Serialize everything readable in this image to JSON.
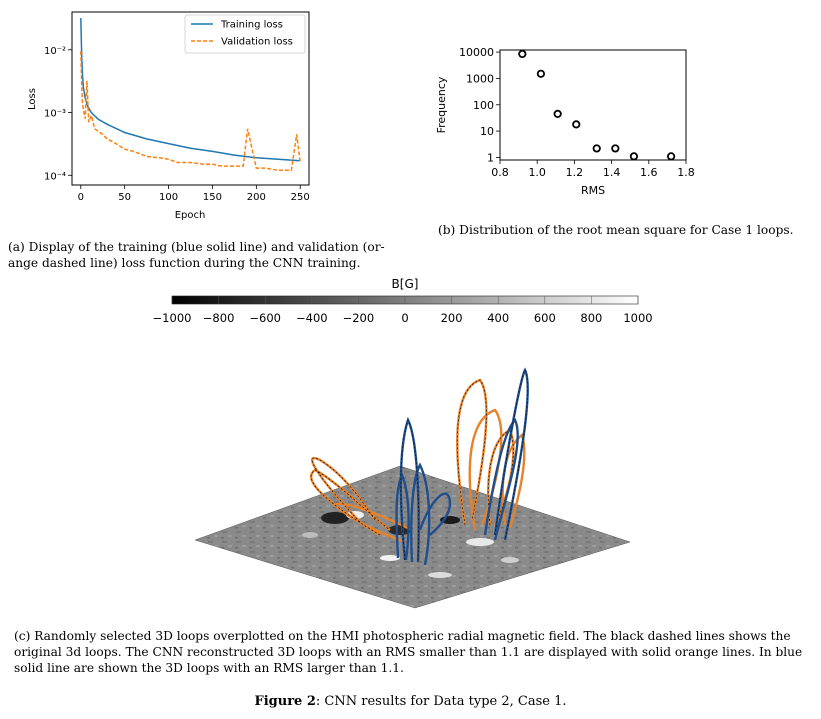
{
  "chart_data": [
    {
      "type": "line",
      "panel": "a",
      "xlabel": "Epoch",
      "ylabel": "Loss",
      "xlim": [
        -10,
        260
      ],
      "ylim": [
        7e-05,
        0.04
      ],
      "log_y": true,
      "x_ticks": [
        0,
        50,
        100,
        150,
        200,
        250
      ],
      "y_ticks": [
        0.0001,
        0.001,
        0.01
      ],
      "y_tick_labels": [
        "10⁻⁴",
        "10⁻³",
        "10⁻²"
      ],
      "legend_position": "top-right",
      "series": [
        {
          "name": "Training loss",
          "color": "#1f77b4",
          "style": "solid",
          "x": [
            0,
            1,
            2,
            3,
            5,
            8,
            12,
            20,
            30,
            50,
            75,
            100,
            125,
            150,
            175,
            200,
            225,
            250
          ],
          "values": [
            0.032,
            0.008,
            0.004,
            0.0025,
            0.0017,
            0.00125,
            0.001,
            0.00078,
            0.00065,
            0.00048,
            0.00038,
            0.00032,
            0.00027,
            0.00024,
            0.00021,
            0.00019,
            0.00018,
            0.00017
          ]
        },
        {
          "name": "Validation loss",
          "color": "#ff7f0e",
          "style": "dashed",
          "x": [
            0,
            1,
            2,
            3,
            5,
            7,
            9,
            12,
            16,
            20,
            25,
            30,
            40,
            50,
            60,
            75,
            90,
            100,
            110,
            125,
            140,
            150,
            160,
            175,
            185,
            190,
            200,
            210,
            225,
            240,
            246,
            250
          ],
          "values": [
            0.0095,
            0.0026,
            0.0014,
            0.0011,
            0.0008,
            0.0032,
            0.0007,
            0.0009,
            0.00055,
            0.0005,
            0.00045,
            0.00038,
            0.00032,
            0.00026,
            0.00024,
            0.0002,
            0.00019,
            0.00018,
            0.00016,
            0.00016,
            0.00015,
            0.00015,
            0.00014,
            0.00014,
            0.00014,
            0.00055,
            0.00013,
            0.00013,
            0.00012,
            0.00012,
            0.00045,
            0.00016
          ]
        }
      ]
    },
    {
      "type": "scatter",
      "panel": "b",
      "xlabel": "RMS",
      "ylabel": "Frequency",
      "xlim": [
        0.8,
        1.8
      ],
      "ylim": [
        0.8,
        12000
      ],
      "log_y": true,
      "x_ticks": [
        0.8,
        1.0,
        1.2,
        1.4,
        1.6,
        1.8
      ],
      "x_tick_labels": [
        "0.8",
        "1.0",
        "1.2",
        "1.4",
        "1.6",
        "1.8"
      ],
      "y_ticks": [
        1,
        10,
        100,
        1000,
        10000
      ],
      "y_tick_labels": [
        "1",
        "10",
        "100",
        "1000",
        "10000"
      ],
      "x": [
        0.92,
        1.02,
        1.11,
        1.21,
        1.32,
        1.42,
        1.52,
        1.72
      ],
      "values": [
        8500,
        1500,
        45,
        18,
        2.2,
        2.2,
        1.1,
        1.1
      ]
    }
  ],
  "colorbar": {
    "title": "B[G]",
    "min": -1000,
    "max": 1000,
    "ticks": [
      "−1000",
      "−800",
      "−600",
      "−400",
      "−200",
      "0",
      "200",
      "400",
      "600",
      "800",
      "1000"
    ]
  },
  "colors": {
    "training": "#1f77b4",
    "validation": "#ff7f0e",
    "loops_orange": "#e8822a",
    "loops_blue": "#1f4e8c"
  },
  "captions": {
    "a": "(a) Display of the training (blue solid line) and validation (or-",
    "a2": "ange dashed line) loss function during the CNN training.",
    "b": "(b) Distribution of the root mean square for Case 1 loops.",
    "c1": "(c) Randomly selected 3D loops overplotted on the HMI photospheric radial magnetic field. The black dashed lines shows the",
    "c2": "original 3d loops. The CNN reconstructed 3D loops with an RMS smaller than 1.1 are displayed with solid orange lines. In blue",
    "c3": "solid line are shown the 3D loops with an RMS larger than 1.1."
  },
  "figure": {
    "label": "Figure 2",
    "text": ": CNN results for Data type 2, Case 1."
  }
}
